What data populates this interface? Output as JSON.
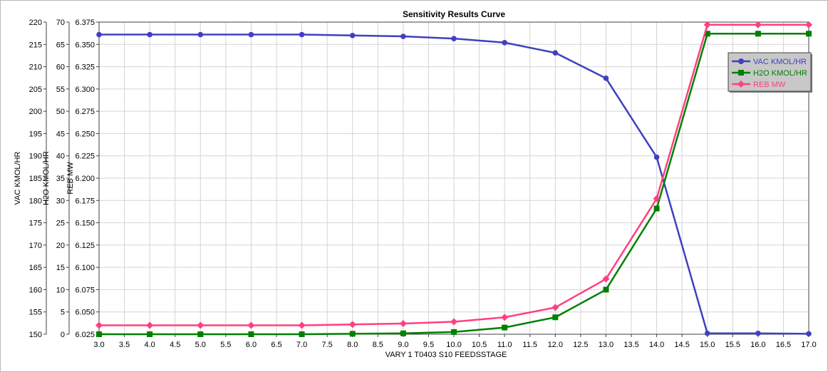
{
  "chart_data": {
    "type": "line",
    "title": "Sensitivity Results Curve",
    "xlabel": "VARY   1 T0403 S10 FEEDSSTAGE",
    "x": [
      3.0,
      4.0,
      5.0,
      6.0,
      7.0,
      8.0,
      9.0,
      10.0,
      11.0,
      12.0,
      13.0,
      14.0,
      15.0,
      16.0,
      17.0
    ],
    "xlim": [
      3.0,
      17.0
    ],
    "xticks": [
      "3.0",
      "3.5",
      "4.0",
      "4.5",
      "5.0",
      "5.5",
      "6.0",
      "6.5",
      "7.0",
      "7.5",
      "8.0",
      "8.5",
      "9.0",
      "9.5",
      "10.0",
      "10.5",
      "11.0",
      "11.5",
      "12.0",
      "12.5",
      "13.0",
      "13.5",
      "14.0",
      "14.5",
      "15.0",
      "15.5",
      "16.0",
      "16.5",
      "17.0"
    ],
    "grid": true,
    "legend_position": "top-right",
    "axes": [
      {
        "label": "VAC KMOL/HR",
        "lim": [
          150,
          220
        ],
        "ticks": [
          "150",
          "155",
          "160",
          "165",
          "170",
          "175",
          "180",
          "185",
          "190",
          "195",
          "200",
          "205",
          "210",
          "215",
          "220"
        ]
      },
      {
        "label": "H2O KMOL/HR",
        "lim": [
          0,
          70
        ],
        "ticks": [
          "0",
          "5",
          "10",
          "15",
          "20",
          "25",
          "30",
          "35",
          "40",
          "45",
          "50",
          "55",
          "60",
          "65",
          "70"
        ]
      },
      {
        "label": "REB MW",
        "lim": [
          6.025,
          6.375
        ],
        "ticks": [
          "6.025",
          "6.050",
          "6.075",
          "6.100",
          "6.125",
          "6.150",
          "6.175",
          "6.200",
          "6.225",
          "6.250",
          "6.275",
          "6.300",
          "6.325",
          "6.350",
          "6.375"
        ]
      }
    ],
    "series": [
      {
        "name": "VAC KMOL/HR",
        "axis": 0,
        "color": "#4040c0",
        "marker": "circle",
        "values": [
          217.2,
          217.2,
          217.2,
          217.2,
          217.2,
          217.0,
          216.8,
          216.3,
          215.4,
          213.1,
          207.4,
          189.7,
          150.2,
          150.2,
          150.1
        ]
      },
      {
        "name": "H2O KMOL/HR",
        "axis": 1,
        "color": "#008000",
        "marker": "square",
        "values": [
          0.0,
          0.0,
          0.0,
          0.0,
          0.0,
          0.1,
          0.2,
          0.5,
          1.5,
          3.8,
          10.0,
          28.2,
          67.4,
          67.4,
          67.4
        ]
      },
      {
        "name": "REB MW",
        "axis": 2,
        "color": "#ff4080",
        "marker": "diamond",
        "values": [
          6.035,
          6.035,
          6.035,
          6.035,
          6.035,
          6.036,
          6.037,
          6.039,
          6.044,
          6.055,
          6.087,
          6.177,
          6.372,
          6.372,
          6.372
        ]
      }
    ]
  }
}
